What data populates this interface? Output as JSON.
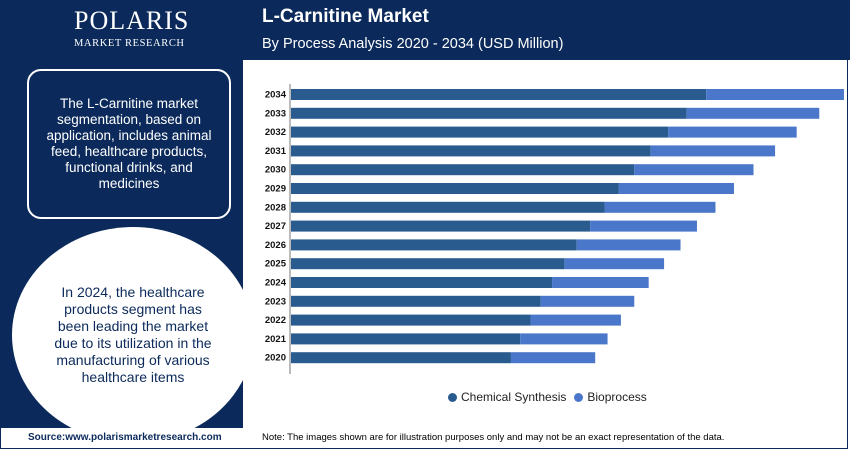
{
  "brand": {
    "name": "POLARIS",
    "tagline": "MARKET RESEARCH"
  },
  "header": {
    "title": "L-Carnitine Market",
    "subtitle": "By Process Analysis 2020 - 2034 (USD Million)"
  },
  "info_box": {
    "text": "The L-Carnitine market segmentation, based on application, includes animal feed, healthcare products, functional drinks, and medicines"
  },
  "highlight": {
    "text": "In 2024, the healthcare products segment has been leading the market due to its utilization in the manufacturing of various healthcare items"
  },
  "footer": {
    "source": "Source:www.polarismarketresearch.com",
    "note": "Note: The images shown are for illustration purposes only and may not be an exact representation of the data."
  },
  "colors": {
    "navy": "#0b2a5b",
    "series1": "#2a5b8f",
    "series2": "#4a77c9"
  },
  "chart_data": {
    "type": "bar",
    "orientation": "horizontal",
    "stacked": true,
    "categories": [
      "2034",
      "2033",
      "2032",
      "2031",
      "2030",
      "2029",
      "2028",
      "2027",
      "2026",
      "2025",
      "2024",
      "2023",
      "2022",
      "2021",
      "2020"
    ],
    "series": [
      {
        "name": "Chemical Synthesis",
        "color": "#2a5b8f",
        "values": [
          404,
          385,
          367,
          350,
          334,
          319,
          305,
          291,
          278,
          266,
          254,
          243,
          233,
          223,
          214
        ]
      },
      {
        "name": "Bioprocess",
        "color": "#4a77c9",
        "values": [
          134,
          129,
          125,
          121,
          116,
          112,
          108,
          104,
          101,
          97,
          94,
          91,
          88,
          85,
          82
        ]
      }
    ],
    "legend_position": "bottom",
    "grid": false,
    "xlim": [
      0,
      540
    ]
  }
}
